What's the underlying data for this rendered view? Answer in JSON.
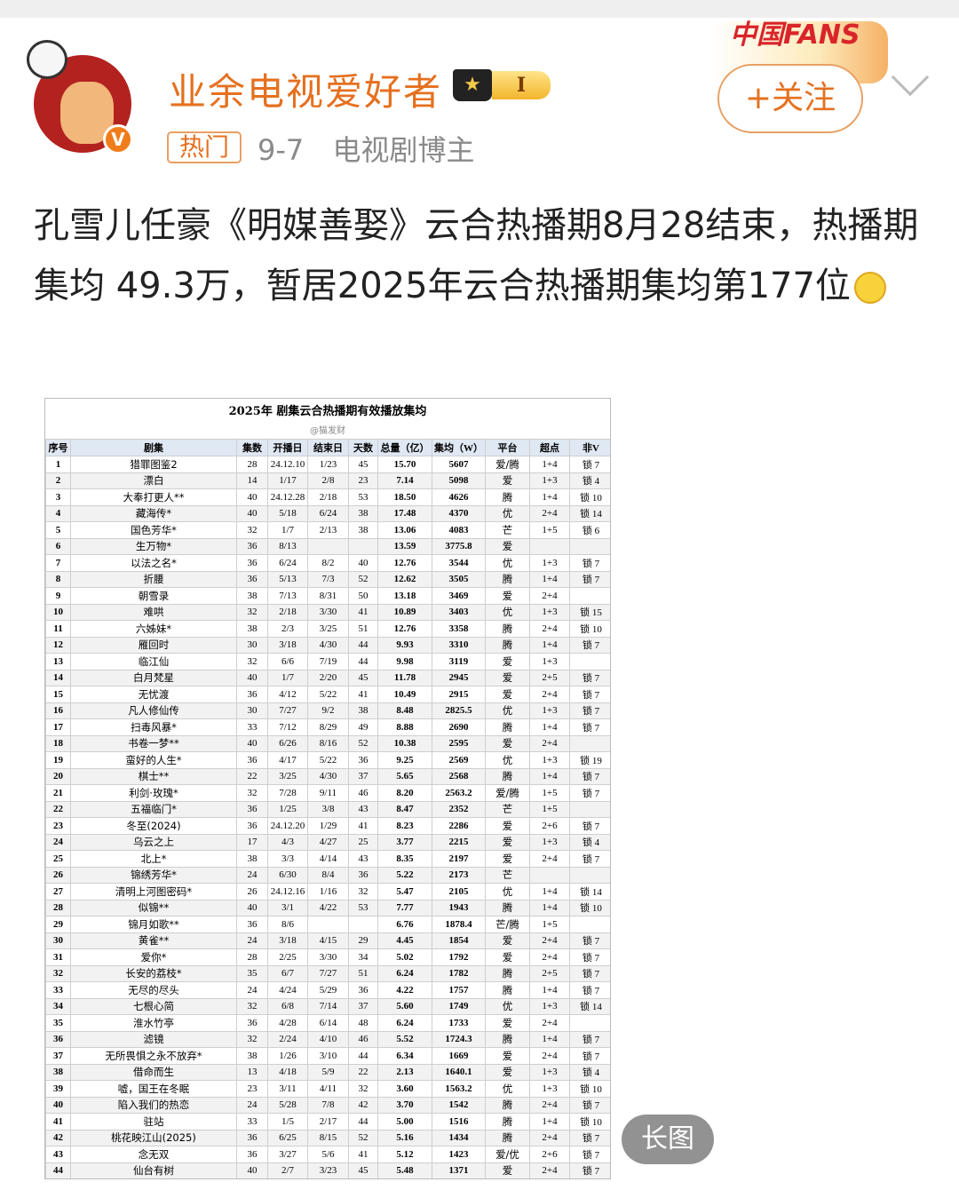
{
  "header": {
    "username": "业余电视爱好者",
    "level": "I",
    "hot_tag": "热门",
    "date": "9-7",
    "category": "电视剧博主",
    "follow_label": "+关注",
    "fans_badge": "中国FANS"
  },
  "post": {
    "text": "孔雪儿任豪《明媒善娶》云合热播期8月28结束，热播期集均 49.3万，暂居2025年云合热播期集均第177位"
  },
  "image": {
    "title": "2025年 剧集云合热播期有效播放集均",
    "source": "@猫发财",
    "columns": [
      "序号",
      "剧集",
      "集数",
      "开播日",
      "结束日",
      "天数",
      "总量（亿）",
      "集均（W）",
      "平台",
      "超点",
      "非V"
    ],
    "rows": [
      [
        "1",
        "猎罪图鉴2",
        "28",
        "24.12.10",
        "1/23",
        "45",
        "15.70",
        "5607",
        "爱/腾",
        "1+4",
        "锁 7"
      ],
      [
        "2",
        "漂白",
        "14",
        "1/17",
        "2/8",
        "23",
        "7.14",
        "5098",
        "爱",
        "1+3",
        "锁 4"
      ],
      [
        "3",
        "大奉打更人**",
        "40",
        "24.12.28",
        "2/18",
        "53",
        "18.50",
        "4626",
        "腾",
        "1+4",
        "锁 10"
      ],
      [
        "4",
        "藏海传*",
        "40",
        "5/18",
        "6/24",
        "38",
        "17.48",
        "4370",
        "优",
        "2+4",
        "锁 14"
      ],
      [
        "5",
        "国色芳华*",
        "32",
        "1/7",
        "2/13",
        "38",
        "13.06",
        "4083",
        "芒",
        "1+5",
        "锁 6"
      ],
      [
        "6",
        "生万物*",
        "36",
        "8/13",
        "",
        "",
        "13.59",
        "3775.8",
        "爱",
        "",
        ""
      ],
      [
        "7",
        "以法之名*",
        "36",
        "6/24",
        "8/2",
        "40",
        "12.76",
        "3544",
        "优",
        "1+3",
        "锁 7"
      ],
      [
        "8",
        "折腰",
        "36",
        "5/13",
        "7/3",
        "52",
        "12.62",
        "3505",
        "腾",
        "1+4",
        "锁 7"
      ],
      [
        "9",
        "朝雪录",
        "38",
        "7/13",
        "8/31",
        "50",
        "13.18",
        "3469",
        "爱",
        "2+4",
        ""
      ],
      [
        "10",
        "难哄",
        "32",
        "2/18",
        "3/30",
        "41",
        "10.89",
        "3403",
        "优",
        "1+3",
        "锁 15"
      ],
      [
        "11",
        "六姊妹*",
        "38",
        "2/3",
        "3/25",
        "51",
        "12.76",
        "3358",
        "腾",
        "2+4",
        "锁 10"
      ],
      [
        "12",
        "雁回时",
        "30",
        "3/18",
        "4/30",
        "44",
        "9.93",
        "3310",
        "腾",
        "1+4",
        "锁 7"
      ],
      [
        "13",
        "临江仙",
        "32",
        "6/6",
        "7/19",
        "44",
        "9.98",
        "3119",
        "爱",
        "1+3",
        ""
      ],
      [
        "14",
        "白月梵星",
        "40",
        "1/7",
        "2/20",
        "45",
        "11.78",
        "2945",
        "爱",
        "2+5",
        "锁 7"
      ],
      [
        "15",
        "无忧渡",
        "36",
        "4/12",
        "5/22",
        "41",
        "10.49",
        "2915",
        "爱",
        "2+4",
        "锁 7"
      ],
      [
        "16",
        "凡人修仙传",
        "30",
        "7/27",
        "9/2",
        "38",
        "8.48",
        "2825.5",
        "优",
        "1+3",
        "锁 7"
      ],
      [
        "17",
        "扫毒风暴*",
        "33",
        "7/12",
        "8/29",
        "49",
        "8.88",
        "2690",
        "腾",
        "1+4",
        "锁 7"
      ],
      [
        "18",
        "书卷一梦**",
        "40",
        "6/26",
        "8/16",
        "52",
        "10.38",
        "2595",
        "爱",
        "2+4",
        ""
      ],
      [
        "19",
        "蛮好的人生*",
        "36",
        "4/17",
        "5/22",
        "36",
        "9.25",
        "2569",
        "优",
        "1+3",
        "锁 19"
      ],
      [
        "20",
        "棋士**",
        "22",
        "3/25",
        "4/30",
        "37",
        "5.65",
        "2568",
        "腾",
        "1+4",
        "锁 7"
      ],
      [
        "21",
        "利剑·玫瑰*",
        "32",
        "7/28",
        "9/11",
        "46",
        "8.20",
        "2563.2",
        "爱/腾",
        "1+5",
        "锁 7"
      ],
      [
        "22",
        "五福临门*",
        "36",
        "1/25",
        "3/8",
        "43",
        "8.47",
        "2352",
        "芒",
        "1+5",
        ""
      ],
      [
        "23",
        "冬至(2024)",
        "36",
        "24.12.20",
        "1/29",
        "41",
        "8.23",
        "2286",
        "爱",
        "2+6",
        "锁 7"
      ],
      [
        "24",
        "乌云之上",
        "17",
        "4/3",
        "4/27",
        "25",
        "3.77",
        "2215",
        "爱",
        "1+3",
        "锁 4"
      ],
      [
        "25",
        "北上*",
        "38",
        "3/3",
        "4/14",
        "43",
        "8.35",
        "2197",
        "爱",
        "2+4",
        "锁 7"
      ],
      [
        "26",
        "锦绣芳华*",
        "24",
        "6/30",
        "8/4",
        "36",
        "5.22",
        "2173",
        "芒",
        "",
        ""
      ],
      [
        "27",
        "清明上河图密码*",
        "26",
        "24.12.16",
        "1/16",
        "32",
        "5.47",
        "2105",
        "优",
        "1+4",
        "锁 14"
      ],
      [
        "28",
        "似锦**",
        "40",
        "3/1",
        "4/22",
        "53",
        "7.77",
        "1943",
        "腾",
        "1+4",
        "锁 10"
      ],
      [
        "29",
        "锦月如歌**",
        "36",
        "8/6",
        "",
        "",
        "6.76",
        "1878.4",
        "芒/腾",
        "1+5",
        ""
      ],
      [
        "30",
        "黄雀**",
        "24",
        "3/18",
        "4/15",
        "29",
        "4.45",
        "1854",
        "爱",
        "2+4",
        "锁 7"
      ],
      [
        "31",
        "爱你*",
        "28",
        "2/25",
        "3/30",
        "34",
        "5.02",
        "1792",
        "爱",
        "2+4",
        "锁 7"
      ],
      [
        "32",
        "长安的荔枝*",
        "35",
        "6/7",
        "7/27",
        "51",
        "6.24",
        "1782",
        "腾",
        "2+5",
        "锁 7"
      ],
      [
        "33",
        "无尽的尽头",
        "24",
        "4/24",
        "5/29",
        "36",
        "4.22",
        "1757",
        "腾",
        "1+4",
        "锁 7"
      ],
      [
        "34",
        "七根心简",
        "32",
        "6/8",
        "7/14",
        "37",
        "5.60",
        "1749",
        "优",
        "1+3",
        "锁 14"
      ],
      [
        "35",
        "淮水竹亭",
        "36",
        "4/28",
        "6/14",
        "48",
        "6.24",
        "1733",
        "爱",
        "2+4",
        ""
      ],
      [
        "36",
        "滤镜",
        "32",
        "2/24",
        "4/10",
        "46",
        "5.52",
        "1724.3",
        "腾",
        "1+4",
        "锁 7"
      ],
      [
        "37",
        "无所畏惧之永不放弃*",
        "38",
        "1/26",
        "3/10",
        "44",
        "6.34",
        "1669",
        "爱",
        "2+4",
        "锁 7"
      ],
      [
        "38",
        "借命而生",
        "13",
        "4/18",
        "5/9",
        "22",
        "2.13",
        "1640.1",
        "爱",
        "1+3",
        "锁 4"
      ],
      [
        "39",
        "嘘，国王在冬眠",
        "23",
        "3/11",
        "4/11",
        "32",
        "3.60",
        "1563.2",
        "优",
        "1+3",
        "锁 10"
      ],
      [
        "40",
        "陷入我们的热恋",
        "24",
        "5/28",
        "7/8",
        "42",
        "3.70",
        "1542",
        "腾",
        "2+4",
        "锁 7"
      ],
      [
        "41",
        "驻站",
        "33",
        "1/5",
        "2/17",
        "44",
        "5.00",
        "1516",
        "腾",
        "1+4",
        "锁 10"
      ],
      [
        "42",
        "桃花映江山(2025)",
        "36",
        "6/25",
        "8/15",
        "52",
        "5.16",
        "1434",
        "腾",
        "2+4",
        "锁 7"
      ],
      [
        "43",
        "念无双",
        "36",
        "3/27",
        "5/6",
        "41",
        "5.12",
        "1423",
        "爱/优",
        "2+6",
        "锁 7"
      ],
      [
        "44",
        "仙台有树",
        "40",
        "2/7",
        "3/23",
        "45",
        "5.48",
        "1371",
        "爱",
        "2+4",
        "锁 7"
      ]
    ]
  },
  "long_image_label": "长图",
  "colors": {
    "accent": "#e5701f",
    "header_bg": "#dfe8f3"
  }
}
